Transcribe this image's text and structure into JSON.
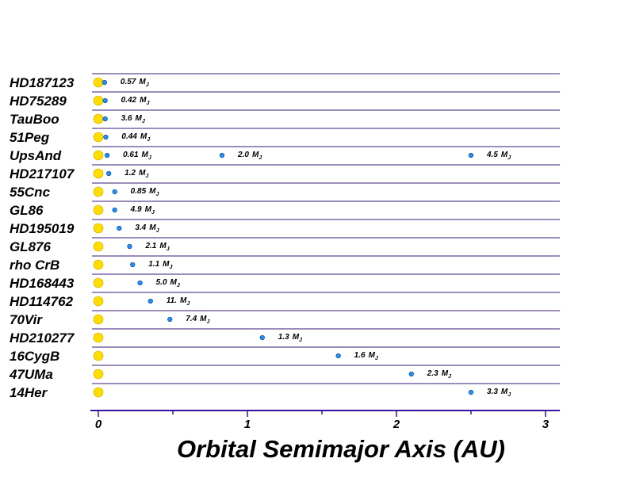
{
  "chart_data": {
    "type": "scatter",
    "xlabel": "Orbital Semimajor Axis  (AU)",
    "xlim": [
      0,
      3.1
    ],
    "x_ticks": [
      0,
      1,
      2,
      3
    ],
    "mass_unit": "M",
    "mass_unit_sub": "J",
    "colors": {
      "star": "#ffdd00",
      "star_outline": "#c9a800",
      "planet": "#1e90ff",
      "rule": "#3a1878",
      "axis": "#3a10a0"
    },
    "systems": [
      {
        "star": "HD187123",
        "planets": [
          {
            "a": 0.042,
            "mass": "0.57"
          }
        ]
      },
      {
        "star": "HD75289",
        "planets": [
          {
            "a": 0.046,
            "mass": "0.42"
          }
        ]
      },
      {
        "star": "TauBoo",
        "planets": [
          {
            "a": 0.046,
            "mass": "3.6"
          }
        ]
      },
      {
        "star": "51Peg",
        "planets": [
          {
            "a": 0.05,
            "mass": "0.44"
          }
        ]
      },
      {
        "star": "UpsAnd",
        "planets": [
          {
            "a": 0.059,
            "mass": "0.61"
          },
          {
            "a": 0.83,
            "mass": "2.0"
          },
          {
            "a": 2.5,
            "mass": "4.5"
          }
        ]
      },
      {
        "star": "HD217107",
        "planets": [
          {
            "a": 0.07,
            "mass": "1.2"
          }
        ]
      },
      {
        "star": "55Cnc",
        "planets": [
          {
            "a": 0.11,
            "mass": "0.85"
          }
        ]
      },
      {
        "star": "GL86",
        "planets": [
          {
            "a": 0.11,
            "mass": "4.9"
          }
        ]
      },
      {
        "star": "HD195019",
        "planets": [
          {
            "a": 0.14,
            "mass": "3.4"
          }
        ]
      },
      {
        "star": "GL876",
        "planets": [
          {
            "a": 0.21,
            "mass": "2.1"
          }
        ]
      },
      {
        "star": "rho CrB",
        "planets": [
          {
            "a": 0.23,
            "mass": "1.1"
          }
        ]
      },
      {
        "star": "HD168443",
        "planets": [
          {
            "a": 0.28,
            "mass": "5.0"
          }
        ]
      },
      {
        "star": "HD114762",
        "planets": [
          {
            "a": 0.35,
            "mass": "11."
          }
        ]
      },
      {
        "star": "70Vir",
        "planets": [
          {
            "a": 0.48,
            "mass": "7.4"
          }
        ]
      },
      {
        "star": "HD210277",
        "planets": [
          {
            "a": 1.1,
            "mass": "1.3"
          }
        ]
      },
      {
        "star": "16CygB",
        "planets": [
          {
            "a": 1.61,
            "mass": "1.6"
          }
        ]
      },
      {
        "star": "47UMa",
        "planets": [
          {
            "a": 2.1,
            "mass": "2.3"
          }
        ]
      },
      {
        "star": "14Her",
        "planets": [
          {
            "a": 2.5,
            "mass": "3.3"
          }
        ]
      }
    ]
  }
}
